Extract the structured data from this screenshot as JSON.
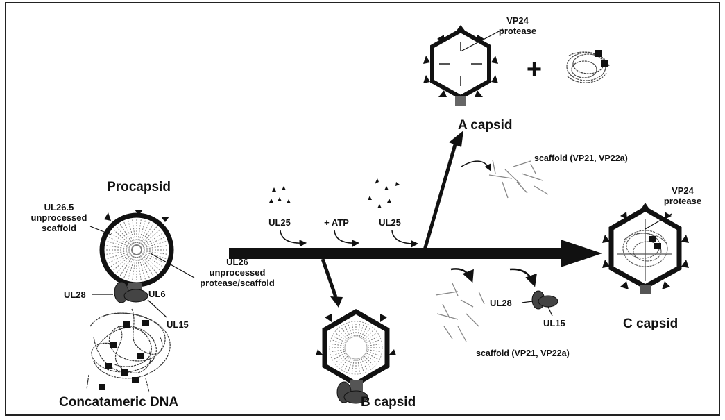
{
  "colors": {
    "ink": "#111111",
    "grey": "#6d6d6d",
    "paper": "#ffffff"
  },
  "labels": {
    "procapsid": "Procapsid",
    "ul26_5_line1": "UL26.5",
    "ul26_5_line2": "unprocessed",
    "ul26_5_line3": "scaffold",
    "ul28_left": "UL28",
    "ul6": "UL6",
    "ul15_left": "UL15",
    "ul26_line1": "UL26",
    "ul26_line2": "unprocessed",
    "ul26_line3": "protease/scaffold",
    "concatameric_dna": "Concatameric DNA",
    "ul25_first": "UL25",
    "atp": "+ ATP",
    "ul25_second": "UL25",
    "vp24_top_line1": "VP24",
    "vp24_top_line2": "protease",
    "plus": "+",
    "a_capsid": "A capsid",
    "scaffold_top": "scaffold (VP21, VP22a)",
    "vp24_right_line1": "VP24",
    "vp24_right_line2": "protease",
    "c_capsid": "C capsid",
    "ul28_right": "UL28",
    "ul15_right": "UL15",
    "scaffold_bottom": "scaffold (VP21, VP22a)",
    "b_capsid": "B capsid"
  }
}
